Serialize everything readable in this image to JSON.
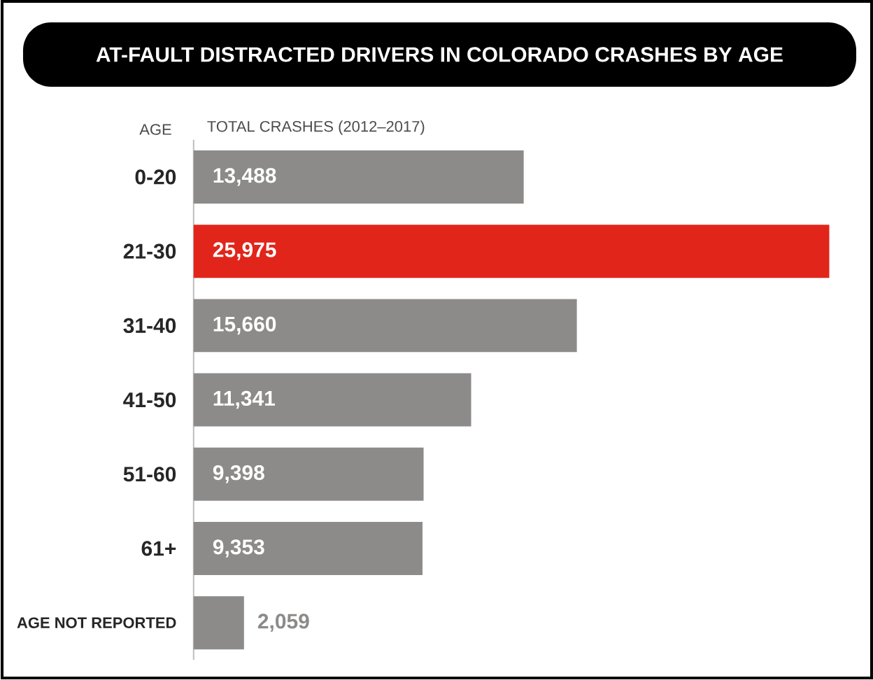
{
  "chart_data": {
    "type": "bar",
    "orientation": "horizontal",
    "title": "AT-FAULT DISTRACTED DRIVERS IN COLORADO CRASHES BY AGE",
    "xlabel": "TOTAL CRASHES (2012–2017)",
    "ylabel": "AGE",
    "categories": [
      "0-20",
      "21-30",
      "31-40",
      "41-50",
      "51-60",
      "61+",
      "AGE NOT REPORTED"
    ],
    "values": [
      13488,
      25975,
      15660,
      11341,
      9398,
      9353,
      2059
    ],
    "value_labels": [
      "13,488",
      "25,975",
      "15,660",
      "11,341",
      "9,398",
      "9,353",
      "2,059"
    ],
    "colors": [
      "#8c8b8a",
      "#e1251b",
      "#8c8b8a",
      "#8c8b8a",
      "#8c8b8a",
      "#8c8b8a",
      "#8c8b8a"
    ],
    "relative": false
  }
}
